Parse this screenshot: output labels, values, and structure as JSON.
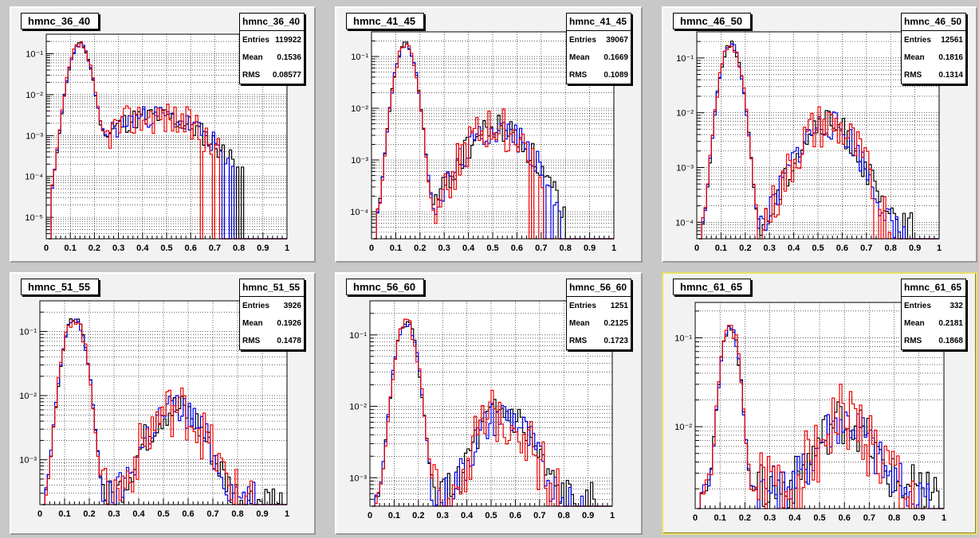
{
  "colors": {
    "black": "#000000",
    "blue": "#0000ee",
    "red": "#ee0000",
    "pad": "#f2f2f2",
    "frame": "#ffffff"
  },
  "stats_labels": {
    "entries": "Entries",
    "mean": "Mean",
    "rms": "RMS"
  },
  "chart_data": [
    {
      "type": "line",
      "name": "hmnc_36_40",
      "stats": {
        "entries": "119922",
        "mean": "0.1536",
        "rms": "0.08577"
      },
      "xlim": [
        0,
        1
      ],
      "xticks": [
        "0",
        "0.1",
        "0.2",
        "0.3",
        "0.4",
        "0.5",
        "0.6",
        "0.7",
        "0.8",
        "0.9",
        "1"
      ],
      "ylog": true,
      "ylim": [
        3e-06,
        0.3
      ],
      "yticks": [
        {
          "v": 0.1,
          "label": "10⁻¹"
        },
        {
          "v": 0.01,
          "label": "10⁻²"
        },
        {
          "v": 0.001,
          "label": "10⁻³"
        },
        {
          "v": 0.0001,
          "label": "10⁻⁴"
        },
        {
          "v": 1e-05,
          "label": "10⁻⁵"
        }
      ],
      "grid": true,
      "cutoff": 0.82,
      "peak": {
        "x": 0.14,
        "v": 0.17,
        "w": 0.027
      },
      "bump": {
        "x": 0.45,
        "v": 0.003,
        "w": 0.14
      },
      "floor": 1e-05
    },
    {
      "type": "line",
      "name": "hmnc_41_45",
      "stats": {
        "entries": "39067",
        "mean": "0.1669",
        "rms": "0.1089"
      },
      "xlim": [
        0,
        1
      ],
      "xticks": [
        "0",
        "0.1",
        "0.2",
        "0.3",
        "0.4",
        "0.5",
        "0.6",
        "0.7",
        "0.8",
        "0.9",
        "1"
      ],
      "ylog": true,
      "ylim": [
        3e-05,
        0.3
      ],
      "yticks": [
        {
          "v": 0.1,
          "label": "10⁻¹"
        },
        {
          "v": 0.01,
          "label": "10⁻²"
        },
        {
          "v": 0.001,
          "label": "10⁻³"
        },
        {
          "v": 0.0001,
          "label": "10⁻⁴"
        }
      ],
      "grid": true,
      "cutoff": 0.82,
      "peak": {
        "x": 0.14,
        "v": 0.17,
        "w": 0.027
      },
      "bump": {
        "x": 0.52,
        "v": 0.004,
        "w": 0.09
      },
      "floor": 0.0001
    },
    {
      "type": "line",
      "name": "hmnc_46_50",
      "stats": {
        "entries": "12561",
        "mean": "0.1816",
        "rms": "0.1314"
      },
      "xlim": [
        0,
        1
      ],
      "xticks": [
        "0",
        "0.1",
        "0.2",
        "0.3",
        "0.4",
        "0.5",
        "0.6",
        "0.7",
        "0.8",
        "0.9",
        "1"
      ],
      "ylog": true,
      "ylim": [
        5e-05,
        0.3
      ],
      "yticks": [
        {
          "v": 0.1,
          "label": "10⁻¹"
        },
        {
          "v": 0.01,
          "label": "10⁻²"
        },
        {
          "v": 0.001,
          "label": "10⁻³"
        },
        {
          "v": 0.0001,
          "label": "10⁻⁴"
        }
      ],
      "grid": true,
      "cutoff": 0.9,
      "peak": {
        "x": 0.14,
        "v": 0.18,
        "w": 0.027
      },
      "bump": {
        "x": 0.54,
        "v": 0.006,
        "w": 0.08
      },
      "floor": 0.0001
    },
    {
      "type": "line",
      "name": "hmnc_51_55",
      "stats": {
        "entries": "3926",
        "mean": "0.1926",
        "rms": "0.1478"
      },
      "xlim": [
        0,
        1
      ],
      "xticks": [
        "0",
        "0.1",
        "0.2",
        "0.3",
        "0.4",
        "0.5",
        "0.6",
        "0.7",
        "0.8",
        "0.9",
        "1"
      ],
      "ylog": true,
      "ylim": [
        0.0002,
        0.3
      ],
      "yticks": [
        {
          "v": 0.1,
          "label": "10⁻¹"
        },
        {
          "v": 0.01,
          "label": "10⁻²"
        },
        {
          "v": 0.001,
          "label": "10⁻³"
        }
      ],
      "grid": true,
      "cutoff": 0.98,
      "peak": {
        "x": 0.14,
        "v": 0.16,
        "w": 0.03
      },
      "bump": {
        "x": 0.55,
        "v": 0.006,
        "w": 0.08
      },
      "floor": 0.0003
    },
    {
      "type": "line",
      "name": "hmnc_56_60",
      "stats": {
        "entries": "1251",
        "mean": "0.2125",
        "rms": "0.1723"
      },
      "xlim": [
        0,
        1
      ],
      "xticks": [
        "0",
        "0.1",
        "0.2",
        "0.3",
        "0.4",
        "0.5",
        "0.6",
        "0.7",
        "0.8",
        "0.9",
        "1"
      ],
      "ylog": true,
      "ylim": [
        0.0004,
        0.3
      ],
      "yticks": [
        {
          "v": 0.1,
          "label": "10⁻¹"
        },
        {
          "v": 0.01,
          "label": "10⁻²"
        },
        {
          "v": 0.001,
          "label": "10⁻³"
        }
      ],
      "grid": true,
      "cutoff": 0.94,
      "peak": {
        "x": 0.15,
        "v": 0.15,
        "w": 0.03
      },
      "bump": {
        "x": 0.55,
        "v": 0.007,
        "w": 0.08
      },
      "floor": 0.0006
    },
    {
      "type": "line",
      "name": "hmnc_61_65",
      "selected": true,
      "stats": {
        "entries": "332",
        "mean": "0.2181",
        "rms": "0.1868"
      },
      "xlim": [
        0,
        1
      ],
      "xticks": [
        "0",
        "0.1",
        "0.2",
        "0.3",
        "0.4",
        "0.5",
        "0.6",
        "0.7",
        "0.8",
        "0.9",
        "1"
      ],
      "ylog": true,
      "ylim": [
        0.0012,
        0.25
      ],
      "yticks": [
        {
          "v": 0.1,
          "label": "10⁻¹"
        },
        {
          "v": 0.01,
          "label": "10⁻²"
        }
      ],
      "grid": true,
      "cutoff": 0.98,
      "peak": {
        "x": 0.14,
        "v": 0.14,
        "w": 0.025
      },
      "bump": {
        "x": 0.6,
        "v": 0.01,
        "w": 0.08
      },
      "floor": 0.0025
    }
  ]
}
